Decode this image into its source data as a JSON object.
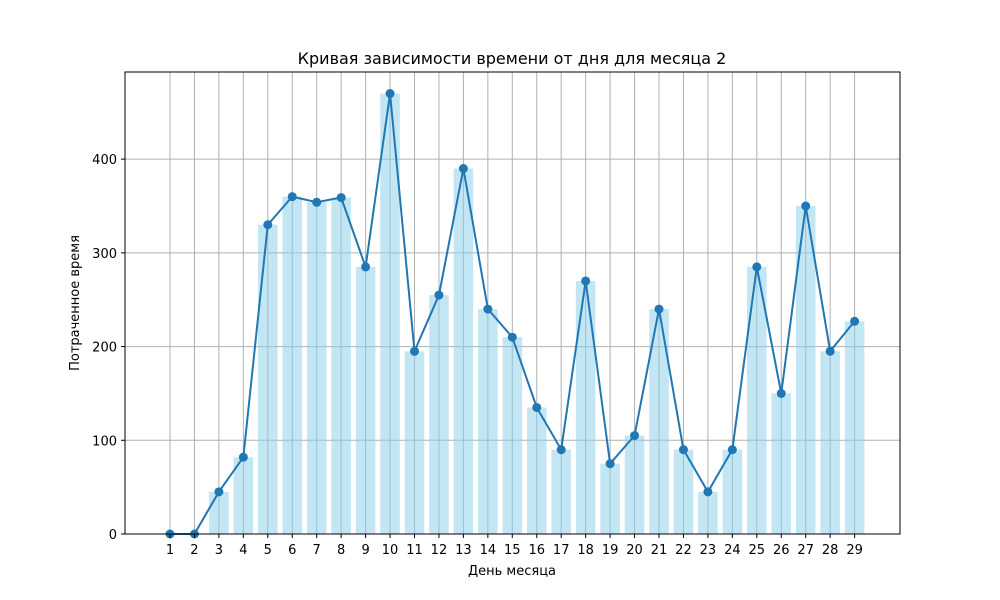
{
  "chart_data": {
    "type": "bar",
    "title": "Кривая зависимости времени от дня для месяца 2",
    "xlabel": "День месяца",
    "ylabel": "Потраченное время",
    "categories": [
      "1",
      "2",
      "3",
      "4",
      "5",
      "6",
      "7",
      "8",
      "9",
      "10",
      "11",
      "12",
      "13",
      "14",
      "15",
      "16",
      "17",
      "18",
      "19",
      "20",
      "21",
      "22",
      "23",
      "24",
      "25",
      "26",
      "27",
      "28",
      "29"
    ],
    "values": [
      0,
      0,
      45,
      82,
      330,
      360,
      354,
      359,
      285,
      470,
      195,
      255,
      390,
      240,
      210,
      135,
      90,
      270,
      75,
      105,
      240,
      90,
      45,
      90,
      285,
      150,
      350,
      195,
      227
    ],
    "ylim": [
      0,
      493
    ],
    "yticks": [
      0,
      100,
      200,
      300,
      400
    ],
    "grid": true,
    "colors": {
      "bar": "#87ceeb",
      "line": "#1f77b4"
    }
  }
}
